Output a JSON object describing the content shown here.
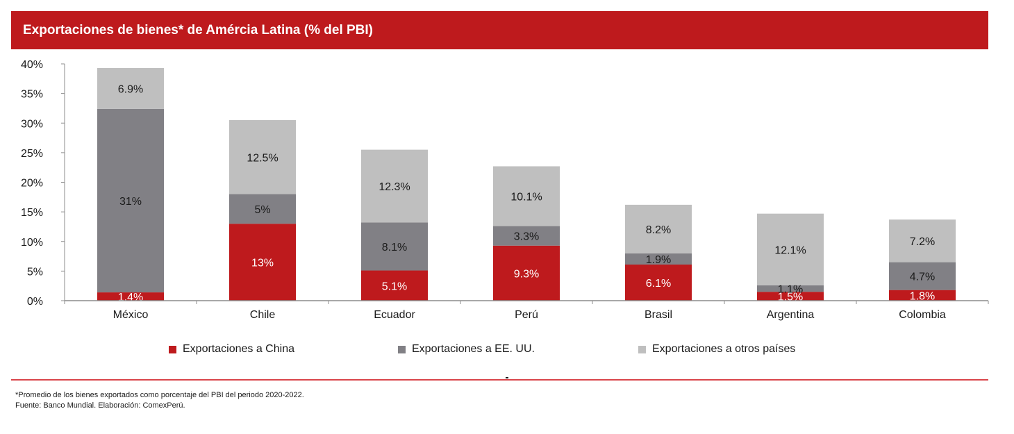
{
  "header": {
    "title": "Exportaciones de bienes* de Amércia Latina (% del PBI)"
  },
  "chart_data": {
    "type": "bar",
    "stacked": true,
    "title": "Exportaciones de bienes* de Amércia Latina (% del PBI)",
    "xlabel": "",
    "ylabel": "",
    "ylim": [
      0,
      40
    ],
    "yticks": [
      0,
      5,
      10,
      15,
      20,
      25,
      30,
      35,
      40
    ],
    "ytick_labels": [
      "0%",
      "5%",
      "10%",
      "15%",
      "20%",
      "25%",
      "30%",
      "35%",
      "40%"
    ],
    "grid": false,
    "legend_position": "bottom",
    "categories": [
      "México",
      "Chile",
      "Ecuador",
      "Perú",
      "Brasil",
      "Argentina",
      "Colombia"
    ],
    "series": [
      {
        "name": "Exportaciones a China",
        "color": "#be1a1d",
        "label_color": "#ffffff",
        "values": [
          1.4,
          13,
          5.1,
          9.3,
          6.1,
          1.5,
          1.8
        ],
        "labels": [
          "1.4%",
          "13%",
          "5.1%",
          "9.3%",
          "6.1%",
          "1.5%",
          "1.8%"
        ]
      },
      {
        "name": "Exportaciones a EE. UU.",
        "color": "#818085",
        "label_color": "#1a1a1a",
        "values": [
          31,
          5,
          8.1,
          3.3,
          1.9,
          1.1,
          4.7
        ],
        "labels": [
          "31%",
          "5%",
          "8.1%",
          "3.3%",
          "1.9%",
          "1.1%",
          "4.7%"
        ]
      },
      {
        "name": "Exportaciones a otros países",
        "color": "#bfbfbf",
        "label_color": "#1a1a1a",
        "values": [
          6.9,
          12.5,
          12.3,
          10.1,
          8.2,
          12.1,
          7.2
        ],
        "labels": [
          "6.9%",
          "12.5%",
          "12.3%",
          "10.1%",
          "8.2%",
          "12.1%",
          "7.2%"
        ]
      }
    ]
  },
  "footer": {
    "note": "*Promedio de los bienes exportados como porcentaje del PBI del periodo 2020-2022.",
    "source": "Fuente: Banco Mundial. Elaboración: ComexPerú."
  }
}
